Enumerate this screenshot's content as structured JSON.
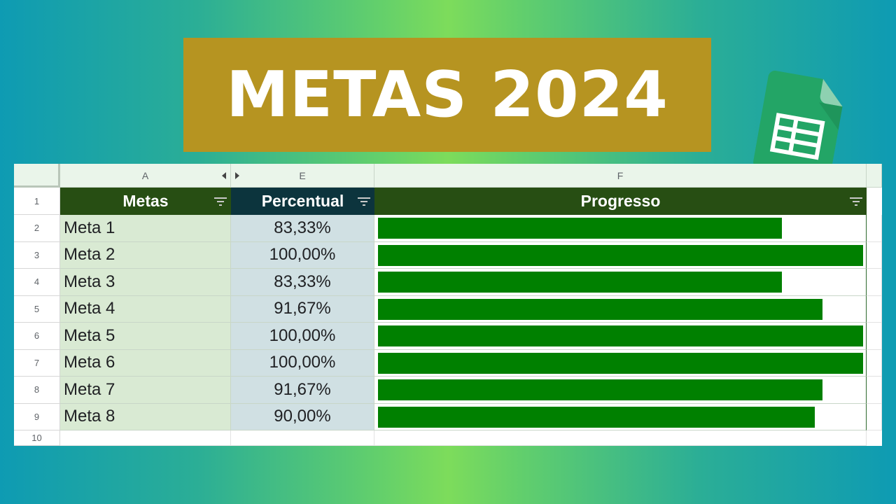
{
  "banner": {
    "title": "METAS 2024"
  },
  "logo": {
    "icon": "google-sheets-icon",
    "color": "#23a566"
  },
  "columns": {
    "a": "A",
    "e": "E",
    "f": "F"
  },
  "headers": {
    "metas": "Metas",
    "percentual": "Percentual",
    "progresso": "Progresso"
  },
  "header_colors": {
    "metas": "#274e13",
    "percentual": "#0c343d",
    "progresso": "#274e13"
  },
  "bar_color": "#008000",
  "row_numbers": [
    "1",
    "2",
    "3",
    "4",
    "5",
    "6",
    "7",
    "8",
    "9",
    "10"
  ],
  "rows": [
    {
      "meta": "Meta 1",
      "percentual": "83,33%",
      "progress": 0.8333
    },
    {
      "meta": "Meta 2",
      "percentual": "100,00%",
      "progress": 1.0
    },
    {
      "meta": "Meta 3",
      "percentual": "83,33%",
      "progress": 0.8333
    },
    {
      "meta": "Meta 4",
      "percentual": "91,67%",
      "progress": 0.9167
    },
    {
      "meta": "Meta 5",
      "percentual": "100,00%",
      "progress": 1.0
    },
    {
      "meta": "Meta 6",
      "percentual": "100,00%",
      "progress": 1.0
    },
    {
      "meta": "Meta 7",
      "percentual": "91,67%",
      "progress": 0.9167
    },
    {
      "meta": "Meta 8",
      "percentual": "90,00%",
      "progress": 0.9
    }
  ]
}
